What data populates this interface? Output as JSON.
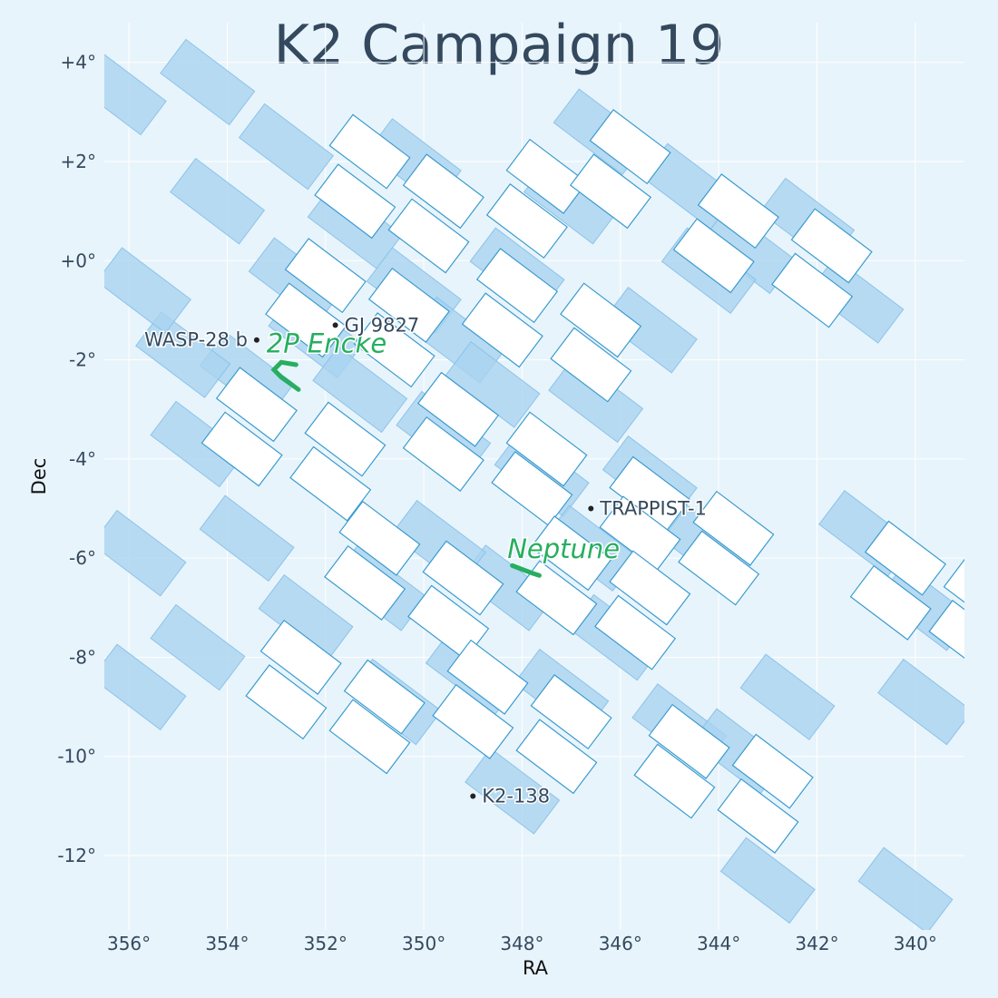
{
  "chart_data": {
    "type": "scatter",
    "title": "K2 Campaign 19",
    "xlabel": "RA",
    "ylabel": "Dec",
    "xlim": [
      356.5,
      339.0
    ],
    "ylim": [
      -13.5,
      4.8
    ],
    "x_ticks": [
      356,
      354,
      352,
      350,
      348,
      346,
      344,
      342,
      340
    ],
    "x_tick_labels": [
      "356°",
      "354°",
      "352°",
      "350°",
      "348°",
      "346°",
      "344°",
      "342°",
      "340°"
    ],
    "y_ticks": [
      4,
      2,
      0,
      -2,
      -4,
      -6,
      -8,
      -10,
      -12
    ],
    "y_tick_labels": [
      "+4°",
      "+2°",
      "+0°",
      "-2°",
      "-4°",
      "-6°",
      "-8°",
      "-10°",
      "-12°"
    ],
    "grid": true,
    "field_of_view": {
      "rotation_deg": 37,
      "module_ra_step": [
        0.96,
        1.26
      ],
      "module_dec_step": [
        -1.61,
        1.2
      ],
      "module_size_ra": 1.0,
      "module_size_dec": 0.55,
      "modules": [
        [
          352.8,
          2.3
        ],
        [
          354.2,
          1.2
        ],
        [
          350.2,
          2.0
        ],
        [
          351.4,
          0.7
        ],
        [
          350.2,
          -0.6
        ],
        [
          352.6,
          -0.4
        ],
        [
          353.6,
          -2.3
        ],
        [
          354.6,
          -3.7
        ],
        [
          352.2,
          -1.5
        ],
        [
          351.3,
          -2.6
        ],
        [
          349.3,
          -1.6
        ],
        [
          348.1,
          -0.2
        ],
        [
          347.0,
          1.2
        ],
        [
          346.4,
          2.6
        ],
        [
          344.6,
          1.5
        ],
        [
          343.4,
          0.2
        ],
        [
          341.2,
          -0.8
        ],
        [
          342.2,
          0.8
        ],
        [
          344.2,
          -0.2
        ],
        [
          345.4,
          -1.4
        ],
        [
          346.5,
          -2.8
        ],
        [
          349.6,
          -3.5
        ],
        [
          348.6,
          -2.5
        ],
        [
          347.6,
          -4.3
        ],
        [
          346.6,
          -5.8
        ],
        [
          345.4,
          -4.4
        ],
        [
          344.2,
          -5.8
        ],
        [
          348.3,
          -6.6
        ],
        [
          349.7,
          -5.7
        ],
        [
          350.9,
          -6.6
        ],
        [
          352.4,
          -7.2
        ],
        [
          353.6,
          -5.6
        ],
        [
          350.6,
          -8.9
        ],
        [
          349.0,
          -8.3
        ],
        [
          347.2,
          -8.7
        ],
        [
          346.1,
          -7.6
        ],
        [
          348.2,
          -10.7
        ],
        [
          344.8,
          -9.4
        ],
        [
          343.6,
          -9.9
        ],
        [
          342.6,
          -8.8
        ],
        [
          341.0,
          -5.5
        ],
        [
          339.8,
          -7.0
        ],
        [
          355.8,
          -5.9
        ],
        [
          355.8,
          -8.6
        ],
        [
          354.6,
          -7.8
        ],
        [
          354.9,
          -1.9
        ],
        [
          355.7,
          -0.6
        ],
        [
          356.2,
          3.4
        ],
        [
          354.4,
          3.6
        ],
        [
          339.8,
          -8.9
        ],
        [
          340.2,
          -12.7
        ],
        [
          343.0,
          -12.5
        ]
      ]
    },
    "channels": [
      [
        351.1,
        2.2
      ],
      [
        351.4,
        1.2
      ],
      [
        349.6,
        1.4
      ],
      [
        349.9,
        0.5
      ],
      [
        347.5,
        1.7
      ],
      [
        347.9,
        0.8
      ],
      [
        345.8,
        2.3
      ],
      [
        346.2,
        1.4
      ],
      [
        343.6,
        1.0
      ],
      [
        344.1,
        0.1
      ],
      [
        341.7,
        0.3
      ],
      [
        342.1,
        -0.6
      ],
      [
        352.0,
        -0.3
      ],
      [
        352.4,
        -1.2
      ],
      [
        350.3,
        -0.9
      ],
      [
        350.6,
        -1.8
      ],
      [
        348.1,
        -0.5
      ],
      [
        348.4,
        -1.4
      ],
      [
        346.4,
        -1.2
      ],
      [
        346.6,
        -2.1
      ],
      [
        353.4,
        -2.9
      ],
      [
        353.7,
        -3.8
      ],
      [
        351.6,
        -3.6
      ],
      [
        351.9,
        -4.5
      ],
      [
        349.3,
        -3.0
      ],
      [
        349.6,
        -3.9
      ],
      [
        347.5,
        -3.8
      ],
      [
        347.8,
        -4.6
      ],
      [
        345.4,
        -4.7
      ],
      [
        345.6,
        -5.5
      ],
      [
        343.7,
        -5.4
      ],
      [
        344.0,
        -6.2
      ],
      [
        350.9,
        -5.6
      ],
      [
        351.2,
        -6.5
      ],
      [
        349.2,
        -6.4
      ],
      [
        349.5,
        -7.3
      ],
      [
        347.0,
        -5.9
      ],
      [
        347.3,
        -6.8
      ],
      [
        345.4,
        -6.6
      ],
      [
        345.7,
        -7.5
      ],
      [
        352.5,
        -8.0
      ],
      [
        352.8,
        -8.9
      ],
      [
        350.8,
        -8.8
      ],
      [
        351.1,
        -9.6
      ],
      [
        348.7,
        -8.4
      ],
      [
        349.0,
        -9.3
      ],
      [
        347.0,
        -9.1
      ],
      [
        347.3,
        -10.0
      ],
      [
        344.6,
        -9.7
      ],
      [
        344.9,
        -10.5
      ],
      [
        342.9,
        -10.3
      ],
      [
        343.2,
        -11.2
      ],
      [
        340.2,
        -6.0
      ],
      [
        340.5,
        -6.9
      ],
      [
        338.6,
        -6.7
      ],
      [
        338.9,
        -7.6
      ]
    ],
    "targets": [
      {
        "name": "WASP-28 b",
        "ra": 353.4,
        "dec": -1.6,
        "align": "left"
      },
      {
        "name": "GJ 9827",
        "ra": 351.8,
        "dec": -1.3,
        "align": "right"
      },
      {
        "name": "TRAPPIST-1",
        "ra": 346.6,
        "dec": -5.0,
        "align": "right"
      },
      {
        "name": "K2-138",
        "ra": 349.0,
        "dec": -10.8,
        "align": "right"
      }
    ],
    "solar_system": [
      {
        "name": "2P Encke",
        "label_ra": 353.2,
        "label_dec": -1.85,
        "track": [
          [
            352.55,
            -2.6
          ],
          [
            352.9,
            -2.35
          ],
          [
            353.05,
            -2.2
          ],
          [
            352.9,
            -2.05
          ],
          [
            352.6,
            -2.1
          ]
        ]
      },
      {
        "name": "Neptune",
        "label_ra": 348.3,
        "label_dec": -6.0,
        "track": [
          [
            348.2,
            -6.15
          ],
          [
            347.8,
            -6.3
          ],
          [
            347.65,
            -6.35
          ]
        ]
      }
    ],
    "colors": {
      "background": "#e8f4fb",
      "fov_fill": "#a9d3f0",
      "channel_fill": "#ffffff",
      "channel_stroke": "#3a9bd0",
      "solar_system": "#27ae60",
      "target_dot": "#222222"
    }
  }
}
